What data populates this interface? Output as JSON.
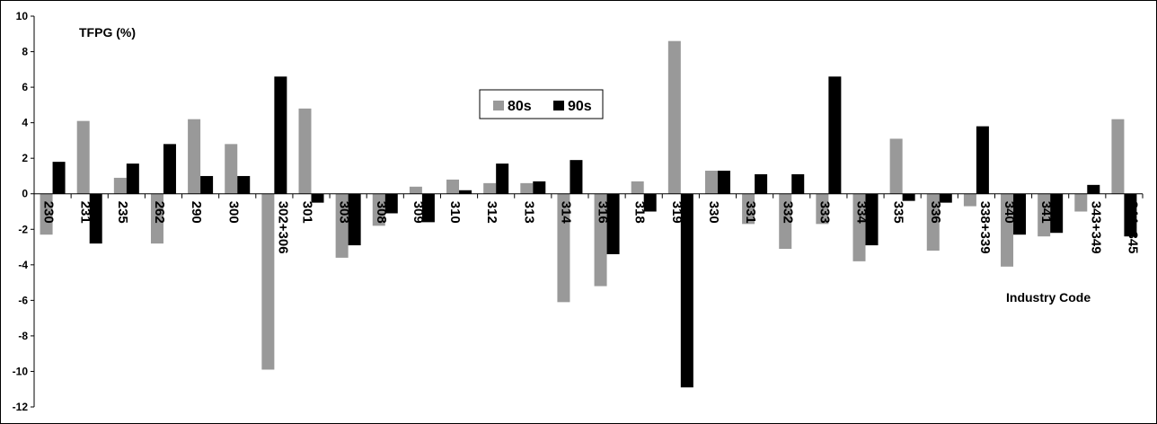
{
  "chart_data": {
    "type": "bar",
    "title": "",
    "ylabel": "TFPG (%)",
    "xlabel": "Industry Code",
    "ylim": [
      -12,
      10
    ],
    "yticks": [
      10,
      8,
      6,
      4,
      2,
      0,
      -2,
      -4,
      -6,
      -8,
      -10,
      -12
    ],
    "grid": false,
    "legend_position": "top-center",
    "categories": [
      "230",
      "231",
      "235",
      "262",
      "290",
      "300",
      "302+306",
      "301",
      "303",
      "308",
      "309",
      "310",
      "312",
      "313",
      "314",
      "316",
      "318",
      "319",
      "330",
      "331",
      "332",
      "333",
      "334",
      "335",
      "336",
      "338+339",
      "340",
      "341",
      "343+349",
      "344+345"
    ],
    "series": [
      {
        "name": "80s",
        "color": "#999999",
        "values": [
          -2.3,
          4.1,
          0.9,
          -2.8,
          4.2,
          2.8,
          -9.9,
          4.8,
          -3.6,
          -1.8,
          0.4,
          0.8,
          0.6,
          0.6,
          -6.1,
          -5.2,
          0.7,
          8.6,
          1.3,
          -1.7,
          -3.1,
          -1.7,
          -3.8,
          3.1,
          -3.2,
          -0.7,
          -4.1,
          -2.4,
          -1.0,
          4.2
        ]
      },
      {
        "name": "90s",
        "color": "#000000",
        "values": [
          1.8,
          -2.8,
          1.7,
          2.8,
          1.0,
          1.0,
          6.6,
          -0.5,
          -2.9,
          -1.1,
          -1.6,
          0.2,
          1.7,
          0.7,
          1.9,
          -3.4,
          -1.0,
          -10.9,
          1.3,
          1.1,
          1.1,
          6.6,
          -2.9,
          -0.4,
          -0.5,
          3.8,
          -2.3,
          -2.2,
          0.5,
          -2.4
        ]
      }
    ]
  }
}
